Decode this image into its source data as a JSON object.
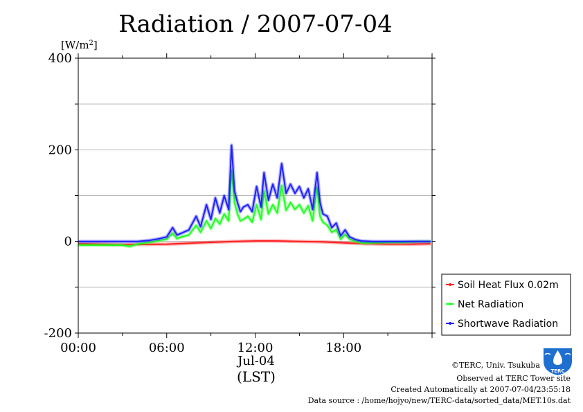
{
  "chart_data": {
    "type": "line",
    "title": "Radiation / 2007-07-04",
    "ylabel_unit": "[W/m",
    "ylabel_unit_sup": "2",
    "ylabel_unit_close": "]",
    "ylim": [
      -200,
      400
    ],
    "yticks": [
      400,
      200,
      0,
      -200
    ],
    "yticks_labels": [
      "400",
      "200",
      "0",
      "-200"
    ],
    "y_minor_ticks": [
      300,
      100,
      -100
    ],
    "xlim": [
      0,
      24
    ],
    "xticks": [
      0,
      6,
      12,
      18
    ],
    "xticks_labels": [
      "00:00",
      "06:00",
      "12:00",
      "18:00"
    ],
    "xdate_label": "Jul-04",
    "xlabel": "(LST)",
    "grid": true,
    "legend_position": "bottom-right",
    "series": [
      {
        "name": "Soil Heat Flux 0.02m",
        "color": "#ff2020",
        "x": [
          0,
          3,
          6,
          7.5,
          9,
          10.5,
          12,
          13.5,
          15,
          16.5,
          18,
          19.5,
          21,
          22.5,
          23.9
        ],
        "y": [
          -5,
          -7,
          -6,
          -4,
          -2,
          0,
          1,
          1,
          0,
          -1,
          -3,
          -5,
          -6,
          -6,
          -5
        ]
      },
      {
        "name": "Net Radiation",
        "color": "#20ff20",
        "x": [
          0,
          1,
          2,
          3,
          3.5,
          4,
          4.8,
          5.5,
          6,
          6.4,
          6.7,
          7,
          7.5,
          8,
          8.3,
          8.7,
          9,
          9.3,
          9.6,
          9.9,
          10.2,
          10.4,
          10.6,
          10.8,
          11,
          11.2,
          11.5,
          11.8,
          12.1,
          12.4,
          12.6,
          12.9,
          13.2,
          13.5,
          13.8,
          14.1,
          14.4,
          14.7,
          15,
          15.3,
          15.6,
          15.9,
          16.2,
          16.4,
          16.6,
          16.9,
          17.2,
          17.5,
          17.8,
          18.1,
          18.4,
          18.8,
          19.2,
          20,
          21,
          22,
          23,
          23.9
        ],
        "y": [
          -8,
          -8,
          -8,
          -8,
          -11,
          -6,
          -2,
          2,
          5,
          18,
          6,
          10,
          14,
          35,
          20,
          45,
          28,
          50,
          38,
          60,
          45,
          155,
          85,
          60,
          45,
          48,
          55,
          42,
          80,
          48,
          110,
          60,
          80,
          62,
          122,
          68,
          85,
          70,
          80,
          62,
          78,
          45,
          118,
          55,
          42,
          35,
          20,
          26,
          5,
          15,
          5,
          0,
          -3,
          -3,
          -2,
          -2,
          0,
          0
        ]
      },
      {
        "name": "Shortwave Radiation",
        "color": "#2020ff",
        "x": [
          0,
          1,
          2,
          3,
          3.5,
          4,
          4.8,
          5.5,
          6,
          6.4,
          6.7,
          7,
          7.5,
          8,
          8.3,
          8.7,
          9,
          9.3,
          9.6,
          9.9,
          10.2,
          10.4,
          10.6,
          10.8,
          11,
          11.2,
          11.5,
          11.8,
          12.1,
          12.4,
          12.6,
          12.9,
          13.2,
          13.5,
          13.8,
          14.1,
          14.4,
          14.7,
          15,
          15.3,
          15.6,
          15.9,
          16.2,
          16.4,
          16.6,
          16.9,
          17.2,
          17.5,
          17.8,
          18.1,
          18.4,
          18.8,
          19.2,
          20,
          21,
          22,
          23,
          23.9
        ],
        "y": [
          0,
          0,
          0,
          0,
          0,
          0,
          2,
          6,
          10,
          30,
          14,
          18,
          25,
          55,
          32,
          80,
          48,
          95,
          62,
          100,
          70,
          210,
          110,
          85,
          65,
          75,
          80,
          65,
          120,
          75,
          150,
          90,
          125,
          95,
          170,
          105,
          125,
          105,
          120,
          95,
          115,
          70,
          150,
          85,
          60,
          55,
          30,
          40,
          12,
          25,
          10,
          4,
          1,
          0,
          0,
          0,
          0,
          0
        ]
      }
    ]
  },
  "footer": {
    "line1": "©TERC, Univ. Tsukuba",
    "line2": "Observed at TERC Tower site",
    "line3": "Created Automatically at 2007-07-04/23:55:18",
    "line4": "Data source : /home/hojyo/new/TERC-data/sorted_data/MET.10s.dat"
  },
  "logo": {
    "text": "TERC",
    "color": "#1e6fd0"
  }
}
